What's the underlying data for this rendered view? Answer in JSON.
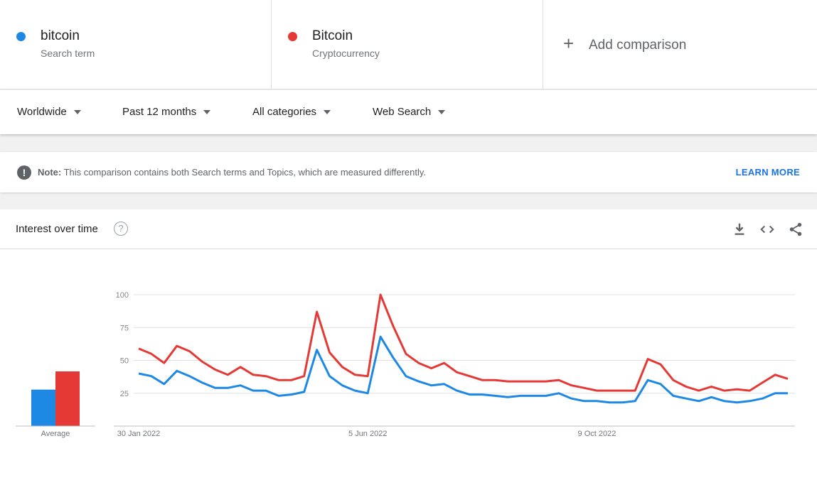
{
  "terms": [
    {
      "name": "bitcoin",
      "type": "Search term",
      "color": "#1e88e5"
    },
    {
      "name": "Bitcoin",
      "type": "Cryptocurrency",
      "color": "#e53935"
    }
  ],
  "add_comparison": {
    "icon": "+",
    "label": "Add comparison"
  },
  "filters": [
    {
      "label": "Worldwide"
    },
    {
      "label": "Past 12 months"
    },
    {
      "label": "All categories"
    },
    {
      "label": "Web Search"
    }
  ],
  "note": {
    "bold": "Note:",
    "text": "This comparison contains both Search terms and Topics, which are measured differently.",
    "link": "LEARN MORE"
  },
  "card": {
    "title": "Interest over time",
    "help": "?",
    "icons": [
      "download-icon",
      "embed-icon",
      "share-icon"
    ]
  },
  "chart_data": {
    "type": "line",
    "x_labels": [
      "30 Jan 2022",
      "5 Jun 2022",
      "9 Oct 2022"
    ],
    "y_ticks": [
      25,
      50,
      75,
      100
    ],
    "ylim": [
      0,
      100
    ],
    "grid": true,
    "average_label": "Average",
    "averages": [
      28,
      42
    ],
    "series": [
      {
        "name": "bitcoin",
        "color": "#1e88e5",
        "values": [
          40,
          38,
          32,
          42,
          38,
          33,
          29,
          29,
          31,
          27,
          27,
          23,
          24,
          26,
          58,
          38,
          31,
          27,
          25,
          68,
          52,
          38,
          34,
          31,
          32,
          27,
          24,
          24,
          23,
          22,
          23,
          23,
          23,
          25,
          21,
          19,
          19,
          18,
          18,
          19,
          35,
          32,
          23,
          21,
          19,
          22,
          19,
          18,
          19,
          21,
          25,
          25
        ]
      },
      {
        "name": "Bitcoin",
        "color": "#e53935",
        "values": [
          59,
          55,
          48,
          61,
          57,
          49,
          43,
          39,
          45,
          39,
          38,
          35,
          35,
          38,
          87,
          56,
          45,
          39,
          38,
          100,
          76,
          55,
          48,
          44,
          48,
          41,
          38,
          35,
          35,
          34,
          34,
          34,
          34,
          35,
          31,
          29,
          27,
          27,
          27,
          27,
          51,
          47,
          35,
          30,
          27,
          30,
          27,
          28,
          27,
          33,
          39,
          36
        ]
      }
    ]
  }
}
